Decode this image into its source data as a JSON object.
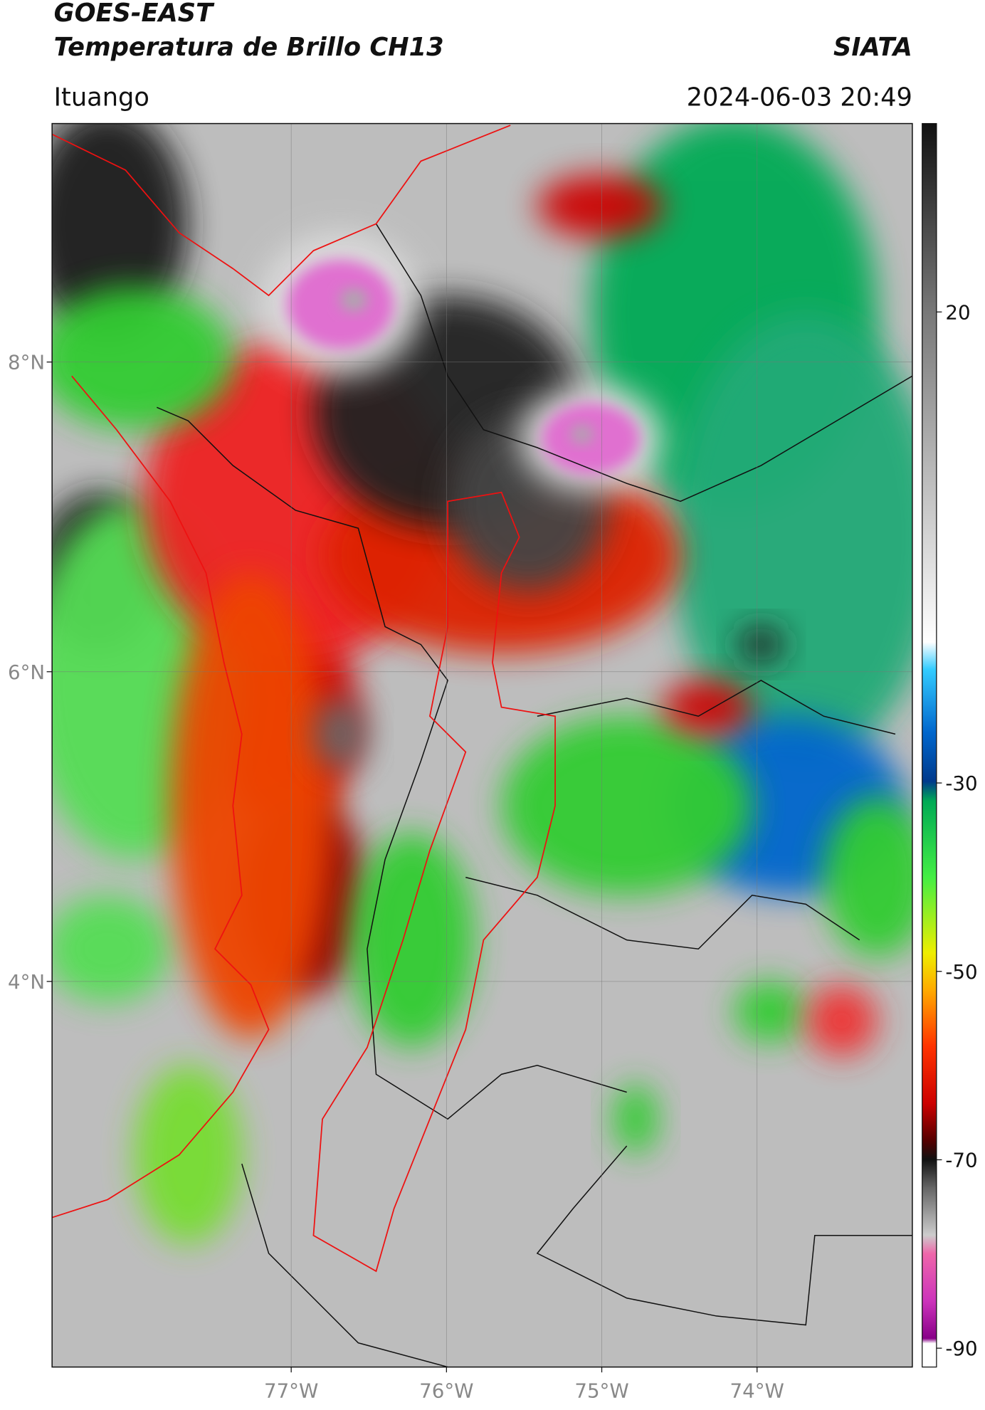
{
  "header": {
    "title": "GOES-EAST",
    "subtitle": "Temperatura de Brillo CH13",
    "source": "SIATA",
    "location": "Ituango",
    "timestamp": "2024-06-03 20:49"
  },
  "map": {
    "xlim": [
      -78.54,
      -73.0
    ],
    "ylim": [
      1.51,
      9.54
    ],
    "xticks": [
      {
        "value": -77,
        "label": "77°W"
      },
      {
        "value": -76,
        "label": "76°W"
      },
      {
        "value": -75,
        "label": "75°W"
      },
      {
        "value": -74,
        "label": "74°W"
      }
    ],
    "yticks": [
      {
        "value": 8,
        "label": "8°N"
      },
      {
        "value": 6,
        "label": "6°N"
      },
      {
        "value": 4,
        "label": "4°N"
      }
    ],
    "grid": true
  },
  "colorbar": {
    "lim": [
      -92,
      40
    ],
    "ticks": [
      20,
      -30,
      -50,
      -70,
      -90
    ]
  }
}
